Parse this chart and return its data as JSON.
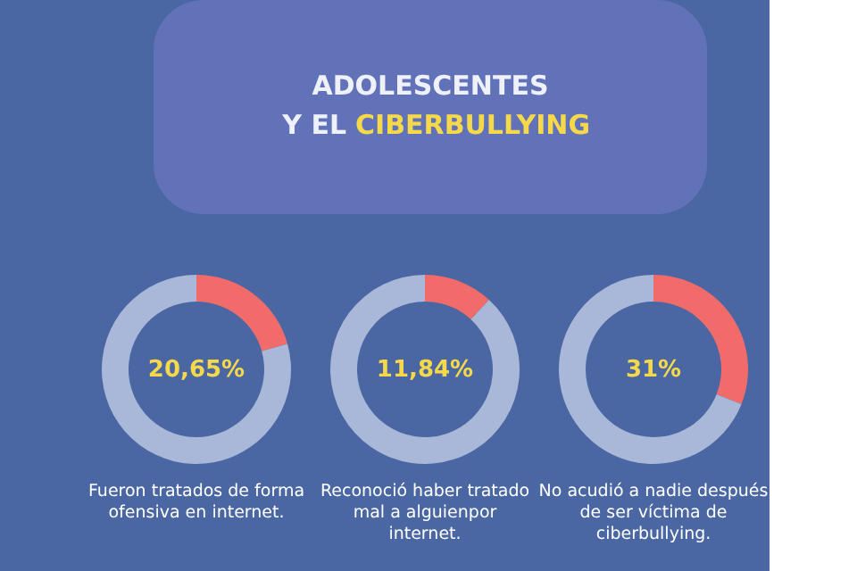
{
  "chart_data": [
    {
      "type": "donut",
      "categories": [
        null,
        null
      ],
      "values": [
        20.65,
        79.35
      ],
      "colors": [
        "#f26b6b",
        "#a9b8d8"
      ],
      "annotations": [
        "20,65%",
        "Fueron tratados de forma ofensiva en internet."
      ]
    },
    {
      "type": "donut",
      "title": "ADOLESCENTES Y EL CIBERBULLYING",
      "categories": [
        null,
        null
      ],
      "values": [
        11.84,
        88.16
      ],
      "colors": [
        "#f26b6b",
        "#a9b8d8"
      ],
      "annotations": [
        "11,84%",
        "Reconoció  haber tratado mal a alguienpor internet."
      ]
    },
    {
      "type": "donut",
      "categories": [
        null,
        null
      ],
      "values": [
        31,
        69
      ],
      "colors": [
        "#f26b6b",
        "#a9b8d8"
      ],
      "annotations": [
        "31%",
        "No acudió a nadie después de ser víctima de ciberbullying."
      ]
    }
  ]
}
